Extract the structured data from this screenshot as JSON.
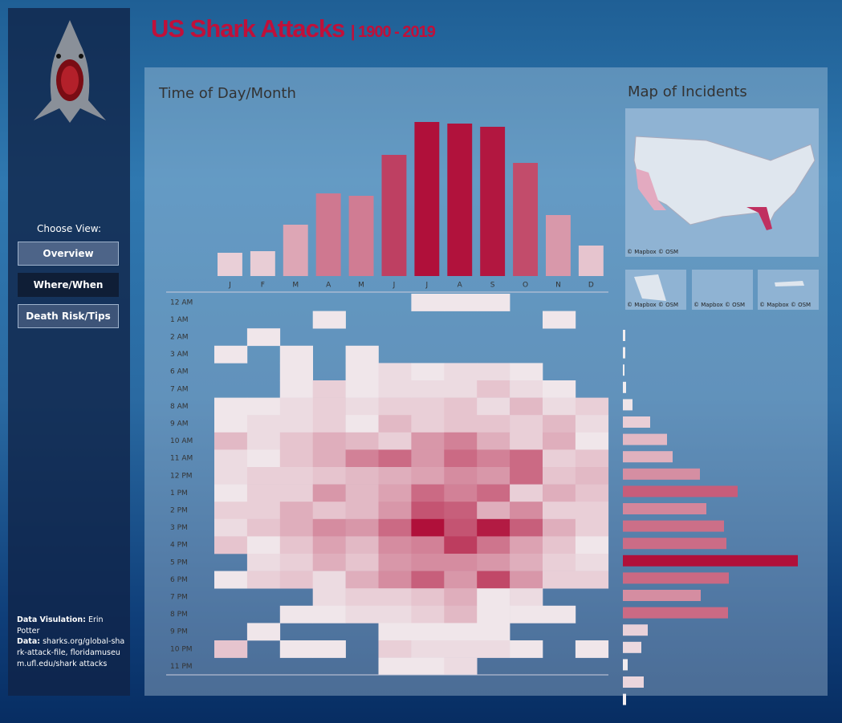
{
  "header": {
    "title": "US Shark Attacks",
    "subtitle": "| 1900 - 2019"
  },
  "sidebar": {
    "prompt": "Choose View:",
    "buttons": [
      "Overview",
      "Where/When",
      "Death Risk/Tips"
    ],
    "credit_label": "Data Visulation:",
    "credit_name": "Erin Potter",
    "data_label": "Data:",
    "data_sources": "sharks.org/global-shark-attack-file, floridamuseum.ufl.edu/shark attacks"
  },
  "chart_data": [
    {
      "type": "bar",
      "title": "Time of Day/Month",
      "categories": [
        "J",
        "F",
        "M",
        "A",
        "M",
        "J",
        "J",
        "A",
        "S",
        "O",
        "N",
        "D"
      ],
      "values": [
        29,
        31,
        64,
        103,
        100,
        151,
        192,
        190,
        186,
        141,
        76,
        38
      ],
      "colors": [
        "#f3f1f3",
        "#b0103a"
      ]
    },
    {
      "type": "heatmap",
      "rows": [
        "12 AM",
        "1 AM",
        "2 AM",
        "3 AM",
        "6 AM",
        "7 AM",
        "8 AM",
        "9 AM",
        "10 AM",
        "11 AM",
        "12 PM",
        "1 PM",
        "2 PM",
        "3 PM",
        "4 PM",
        "5 PM",
        "6 PM",
        "7 PM",
        "8 PM",
        "9 PM",
        "10 PM",
        "11 PM"
      ],
      "values": [
        [
          null,
          null,
          null,
          null,
          null,
          null,
          1,
          1,
          1,
          null,
          null,
          null
        ],
        [
          null,
          null,
          null,
          1,
          null,
          null,
          null,
          null,
          null,
          null,
          1,
          null
        ],
        [
          null,
          1,
          null,
          null,
          null,
          null,
          null,
          null,
          null,
          null,
          null,
          null
        ],
        [
          1,
          null,
          1,
          null,
          1,
          null,
          null,
          null,
          null,
          null,
          null,
          null
        ],
        [
          null,
          null,
          1,
          null,
          1,
          2,
          1,
          2,
          2,
          1,
          null,
          null
        ],
        [
          null,
          null,
          1,
          3,
          1,
          2,
          2,
          2,
          4,
          2,
          1,
          null
        ],
        [
          1,
          1,
          2,
          3,
          2,
          3,
          3,
          4,
          2,
          5,
          2,
          3
        ],
        [
          1,
          2,
          2,
          3,
          1,
          5,
          3,
          4,
          4,
          3,
          5,
          2
        ],
        [
          5,
          2,
          4,
          6,
          5,
          3,
          8,
          10,
          6,
          3,
          6,
          1
        ],
        [
          2,
          1,
          4,
          6,
          10,
          12,
          8,
          12,
          10,
          12,
          3,
          4
        ],
        [
          2,
          3,
          3,
          4,
          5,
          6,
          7,
          9,
          8,
          12,
          4,
          5
        ],
        [
          1,
          3,
          3,
          8,
          5,
          7,
          12,
          10,
          12,
          3,
          6,
          4
        ],
        [
          3,
          3,
          6,
          4,
          5,
          8,
          14,
          13,
          6,
          9,
          3,
          3
        ],
        [
          2,
          4,
          6,
          9,
          8,
          12,
          20,
          14,
          19,
          13,
          6,
          3
        ],
        [
          4,
          1,
          4,
          7,
          5,
          9,
          10,
          16,
          11,
          7,
          4,
          1
        ],
        [
          null,
          2,
          3,
          6,
          4,
          8,
          9,
          9,
          8,
          6,
          3,
          2
        ],
        [
          1,
          3,
          4,
          2,
          6,
          9,
          13,
          8,
          15,
          8,
          3,
          3
        ],
        [
          null,
          null,
          null,
          2,
          3,
          3,
          4,
          6,
          1,
          2,
          null,
          null
        ],
        [
          null,
          null,
          1,
          1,
          2,
          2,
          3,
          5,
          1,
          1,
          1,
          null
        ],
        [
          null,
          1,
          null,
          null,
          null,
          1,
          1,
          1,
          1,
          null,
          null,
          null
        ],
        [
          4,
          null,
          1,
          1,
          null,
          3,
          2,
          2,
          2,
          1,
          null,
          1
        ],
        [
          null,
          null,
          null,
          null,
          null,
          1,
          1,
          2,
          null,
          null,
          null,
          null
        ]
      ],
      "colors": [
        "#f3f1f3",
        "#b0103a"
      ]
    },
    {
      "type": "hbar",
      "values": [
        3,
        3,
        2,
        4,
        12,
        34,
        55,
        62,
        96,
        143,
        104,
        126,
        129,
        218,
        132,
        97,
        131,
        31,
        23,
        6,
        26,
        4
      ],
      "colors": [
        "#f3f1f3",
        "#b0103a"
      ]
    }
  ],
  "map": {
    "title": "Map of Incidents",
    "credits": [
      "© Mapbox © OSM",
      "© Mapbox © OSM",
      "© Mapbox © OSM",
      "© Mapbox © OSM"
    ]
  }
}
